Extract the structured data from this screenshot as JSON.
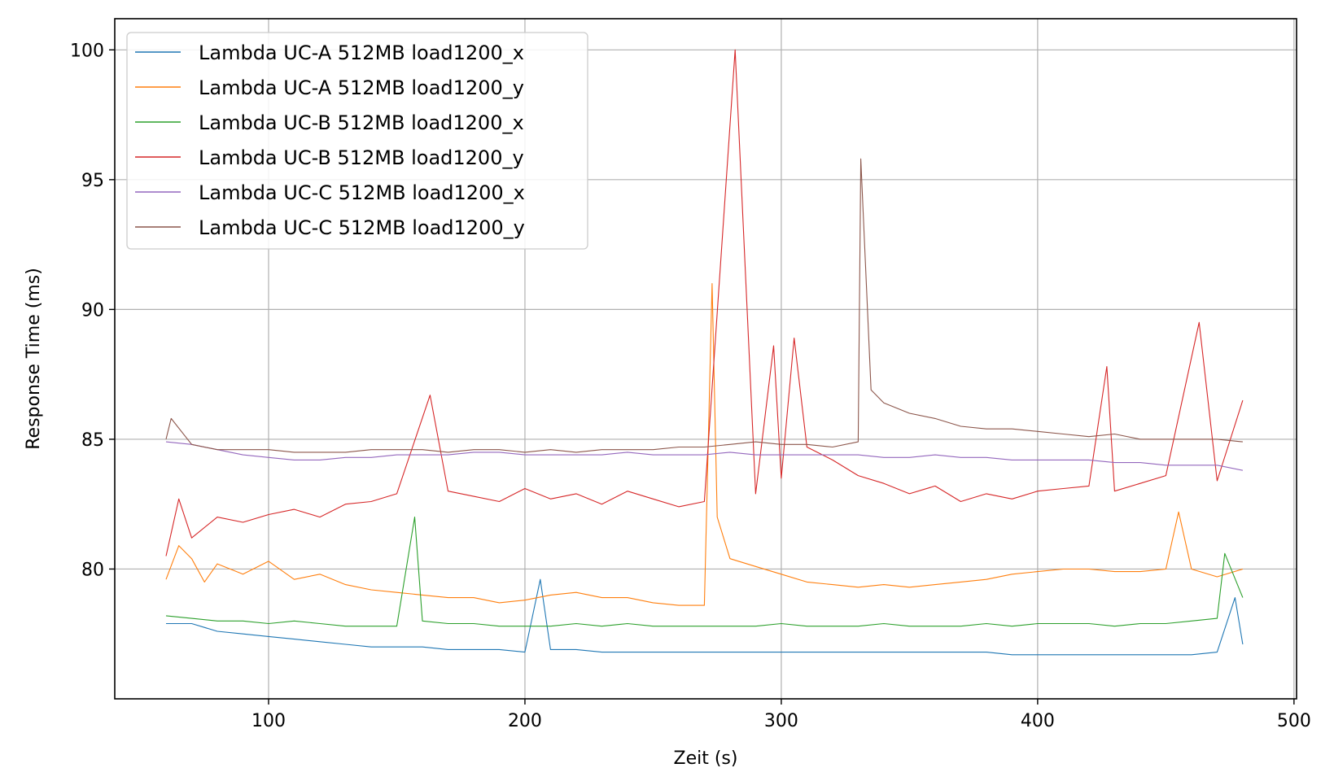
{
  "chart_data": {
    "type": "line",
    "xlabel": "Zeit (s)",
    "ylabel": "Response Time (ms)",
    "xlim": [
      40,
      501
    ],
    "ylim": [
      75,
      101.2
    ],
    "xticks": [
      100,
      200,
      300,
      400,
      500
    ],
    "yticks": [
      80,
      85,
      90,
      95,
      100
    ],
    "grid": true,
    "legend_position": "top-left",
    "series": [
      {
        "name": "Lambda UC-A 512MB load1200_x",
        "color": "#1f77b4",
        "x": [
          60,
          70,
          80,
          90,
          100,
          110,
          120,
          130,
          140,
          150,
          160,
          170,
          180,
          190,
          200,
          206,
          210,
          220,
          230,
          240,
          250,
          260,
          270,
          280,
          290,
          300,
          310,
          320,
          330,
          340,
          350,
          360,
          370,
          380,
          390,
          400,
          410,
          420,
          430,
          440,
          450,
          460,
          470,
          477,
          480
        ],
        "y": [
          77.9,
          77.9,
          77.6,
          77.5,
          77.4,
          77.3,
          77.2,
          77.1,
          77.0,
          77.0,
          77.0,
          76.9,
          76.9,
          76.9,
          76.8,
          79.6,
          76.9,
          76.9,
          76.8,
          76.8,
          76.8,
          76.8,
          76.8,
          76.8,
          76.8,
          76.8,
          76.8,
          76.8,
          76.8,
          76.8,
          76.8,
          76.8,
          76.8,
          76.8,
          76.7,
          76.7,
          76.7,
          76.7,
          76.7,
          76.7,
          76.7,
          76.7,
          76.8,
          78.9,
          77.1
        ]
      },
      {
        "name": "Lambda UC-A 512MB load1200_y",
        "color": "#ff7f0e",
        "x": [
          60,
          65,
          70,
          75,
          80,
          90,
          100,
          110,
          120,
          130,
          140,
          150,
          160,
          170,
          180,
          190,
          200,
          210,
          220,
          230,
          240,
          250,
          260,
          270,
          273,
          275,
          280,
          290,
          300,
          310,
          320,
          330,
          340,
          350,
          360,
          370,
          380,
          390,
          400,
          410,
          420,
          430,
          440,
          450,
          455,
          460,
          470,
          480
        ],
        "y": [
          79.6,
          80.9,
          80.4,
          79.5,
          80.2,
          79.8,
          80.3,
          79.6,
          79.8,
          79.4,
          79.2,
          79.1,
          79.0,
          78.9,
          78.9,
          78.7,
          78.8,
          79.0,
          79.1,
          78.9,
          78.9,
          78.7,
          78.6,
          78.6,
          91.0,
          82.0,
          80.4,
          80.1,
          79.8,
          79.5,
          79.4,
          79.3,
          79.4,
          79.3,
          79.4,
          79.5,
          79.6,
          79.8,
          79.9,
          80.0,
          80.0,
          79.9,
          79.9,
          80.0,
          82.2,
          80.0,
          79.7,
          80.0
        ]
      },
      {
        "name": "Lambda UC-B 512MB load1200_x",
        "color": "#2ca02c",
        "x": [
          60,
          70,
          80,
          90,
          100,
          110,
          120,
          130,
          140,
          150,
          157,
          160,
          170,
          180,
          190,
          200,
          210,
          220,
          230,
          240,
          250,
          260,
          270,
          280,
          290,
          300,
          310,
          320,
          330,
          340,
          350,
          360,
          370,
          380,
          390,
          400,
          410,
          420,
          430,
          440,
          450,
          460,
          470,
          473,
          480
        ],
        "y": [
          78.2,
          78.1,
          78.0,
          78.0,
          77.9,
          78.0,
          77.9,
          77.8,
          77.8,
          77.8,
          82.0,
          78.0,
          77.9,
          77.9,
          77.8,
          77.8,
          77.8,
          77.9,
          77.8,
          77.9,
          77.8,
          77.8,
          77.8,
          77.8,
          77.8,
          77.9,
          77.8,
          77.8,
          77.8,
          77.9,
          77.8,
          77.8,
          77.8,
          77.9,
          77.8,
          77.9,
          77.9,
          77.9,
          77.8,
          77.9,
          77.9,
          78.0,
          78.1,
          80.6,
          78.9
        ]
      },
      {
        "name": "Lambda UC-B 512MB load1200_y",
        "color": "#d62728",
        "x": [
          60,
          65,
          70,
          80,
          90,
          100,
          110,
          120,
          130,
          140,
          150,
          163,
          170,
          180,
          190,
          200,
          210,
          220,
          230,
          240,
          250,
          260,
          270,
          282,
          290,
          297,
          300,
          305,
          310,
          320,
          330,
          340,
          350,
          360,
          370,
          380,
          390,
          400,
          410,
          420,
          427,
          430,
          440,
          450,
          463,
          470,
          480
        ],
        "y": [
          80.5,
          82.7,
          81.2,
          82.0,
          81.8,
          82.1,
          82.3,
          82.0,
          82.5,
          82.6,
          82.9,
          86.7,
          83.0,
          82.8,
          82.6,
          83.1,
          82.7,
          82.9,
          82.5,
          83.0,
          82.7,
          82.4,
          82.6,
          100.0,
          82.9,
          88.6,
          83.5,
          88.9,
          84.7,
          84.2,
          83.6,
          83.3,
          82.9,
          83.2,
          82.6,
          82.9,
          82.7,
          83.0,
          83.1,
          83.2,
          87.8,
          83.0,
          83.3,
          83.6,
          89.5,
          83.4,
          86.5
        ]
      },
      {
        "name": "Lambda UC-C 512MB load1200_x",
        "color": "#9467bd",
        "x": [
          60,
          70,
          80,
          90,
          100,
          110,
          120,
          130,
          140,
          150,
          160,
          170,
          180,
          190,
          200,
          210,
          220,
          230,
          240,
          250,
          260,
          270,
          280,
          290,
          300,
          310,
          320,
          330,
          340,
          350,
          360,
          370,
          380,
          390,
          400,
          410,
          420,
          430,
          440,
          450,
          460,
          470,
          480
        ],
        "y": [
          84.9,
          84.8,
          84.6,
          84.4,
          84.3,
          84.2,
          84.2,
          84.3,
          84.3,
          84.4,
          84.4,
          84.4,
          84.5,
          84.5,
          84.4,
          84.4,
          84.4,
          84.4,
          84.5,
          84.4,
          84.4,
          84.4,
          84.5,
          84.4,
          84.4,
          84.4,
          84.4,
          84.4,
          84.3,
          84.3,
          84.4,
          84.3,
          84.3,
          84.2,
          84.2,
          84.2,
          84.2,
          84.1,
          84.1,
          84.0,
          84.0,
          84.0,
          83.8
        ]
      },
      {
        "name": "Lambda UC-C 512MB load1200_y",
        "color": "#8c564b",
        "x": [
          60,
          62,
          70,
          80,
          90,
          100,
          110,
          120,
          130,
          140,
          150,
          160,
          170,
          180,
          190,
          200,
          210,
          220,
          230,
          240,
          250,
          260,
          270,
          280,
          290,
          300,
          310,
          320,
          330,
          331,
          335,
          340,
          350,
          360,
          370,
          380,
          390,
          400,
          410,
          420,
          430,
          440,
          450,
          460,
          470,
          480
        ],
        "y": [
          85.0,
          85.8,
          84.8,
          84.6,
          84.6,
          84.6,
          84.5,
          84.5,
          84.5,
          84.6,
          84.6,
          84.6,
          84.5,
          84.6,
          84.6,
          84.5,
          84.6,
          84.5,
          84.6,
          84.6,
          84.6,
          84.7,
          84.7,
          84.8,
          84.9,
          84.8,
          84.8,
          84.7,
          84.9,
          95.8,
          86.9,
          86.4,
          86.0,
          85.8,
          85.5,
          85.4,
          85.4,
          85.3,
          85.2,
          85.1,
          85.2,
          85.0,
          85.0,
          85.0,
          85.0,
          84.9
        ]
      }
    ]
  }
}
